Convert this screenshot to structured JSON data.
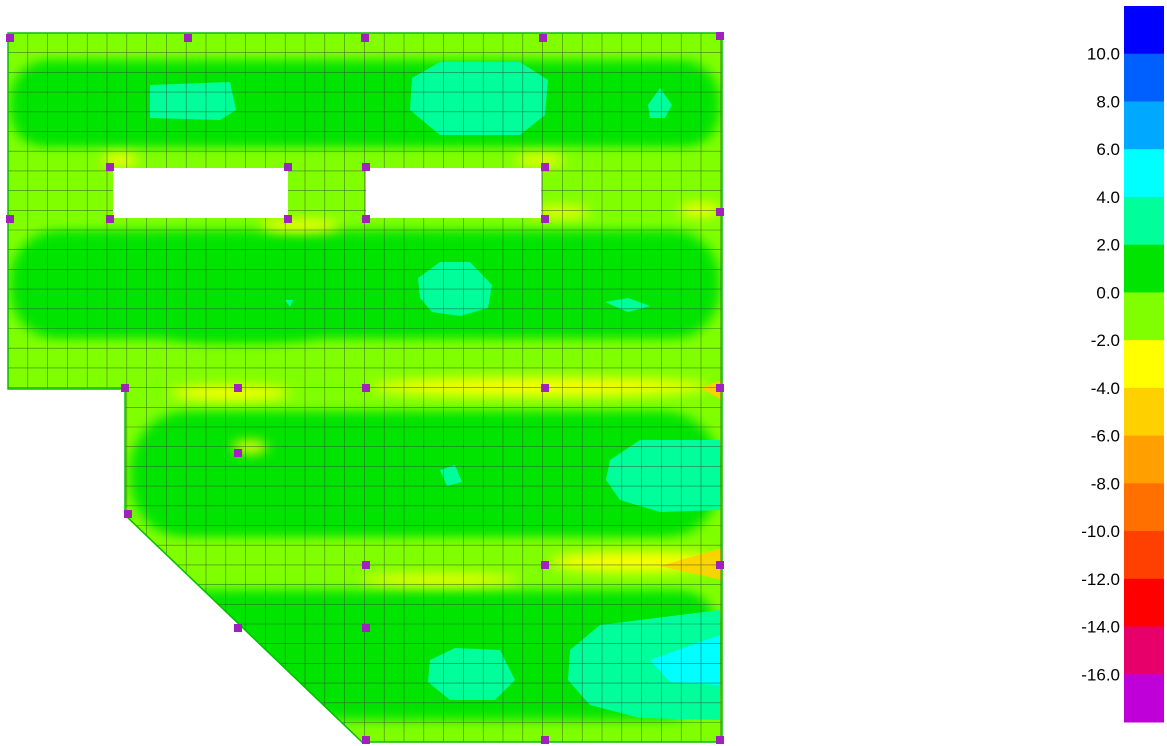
{
  "legend": {
    "ticks": [
      "10.0",
      "8.0",
      "6.0",
      "4.0",
      "2.0",
      "0.0",
      "-2.0",
      "-4.0",
      "-6.0",
      "-8.0",
      "-10.0",
      "-12.0",
      "-14.0",
      "-16.0"
    ],
    "bands": [
      "#0000ff",
      "#0060ff",
      "#00a8ff",
      "#00ffff",
      "#00ff9a",
      "#00e400",
      "#80ff00",
      "#ffff00",
      "#ffd000",
      "#ffa000",
      "#ff7000",
      "#ff4000",
      "#ff0000",
      "#e8006a",
      "#c000d8"
    ]
  },
  "colors": {
    "mesh_line": "#2f4f2f",
    "support": "#a020c0",
    "base_fill": "#7fff00"
  }
}
